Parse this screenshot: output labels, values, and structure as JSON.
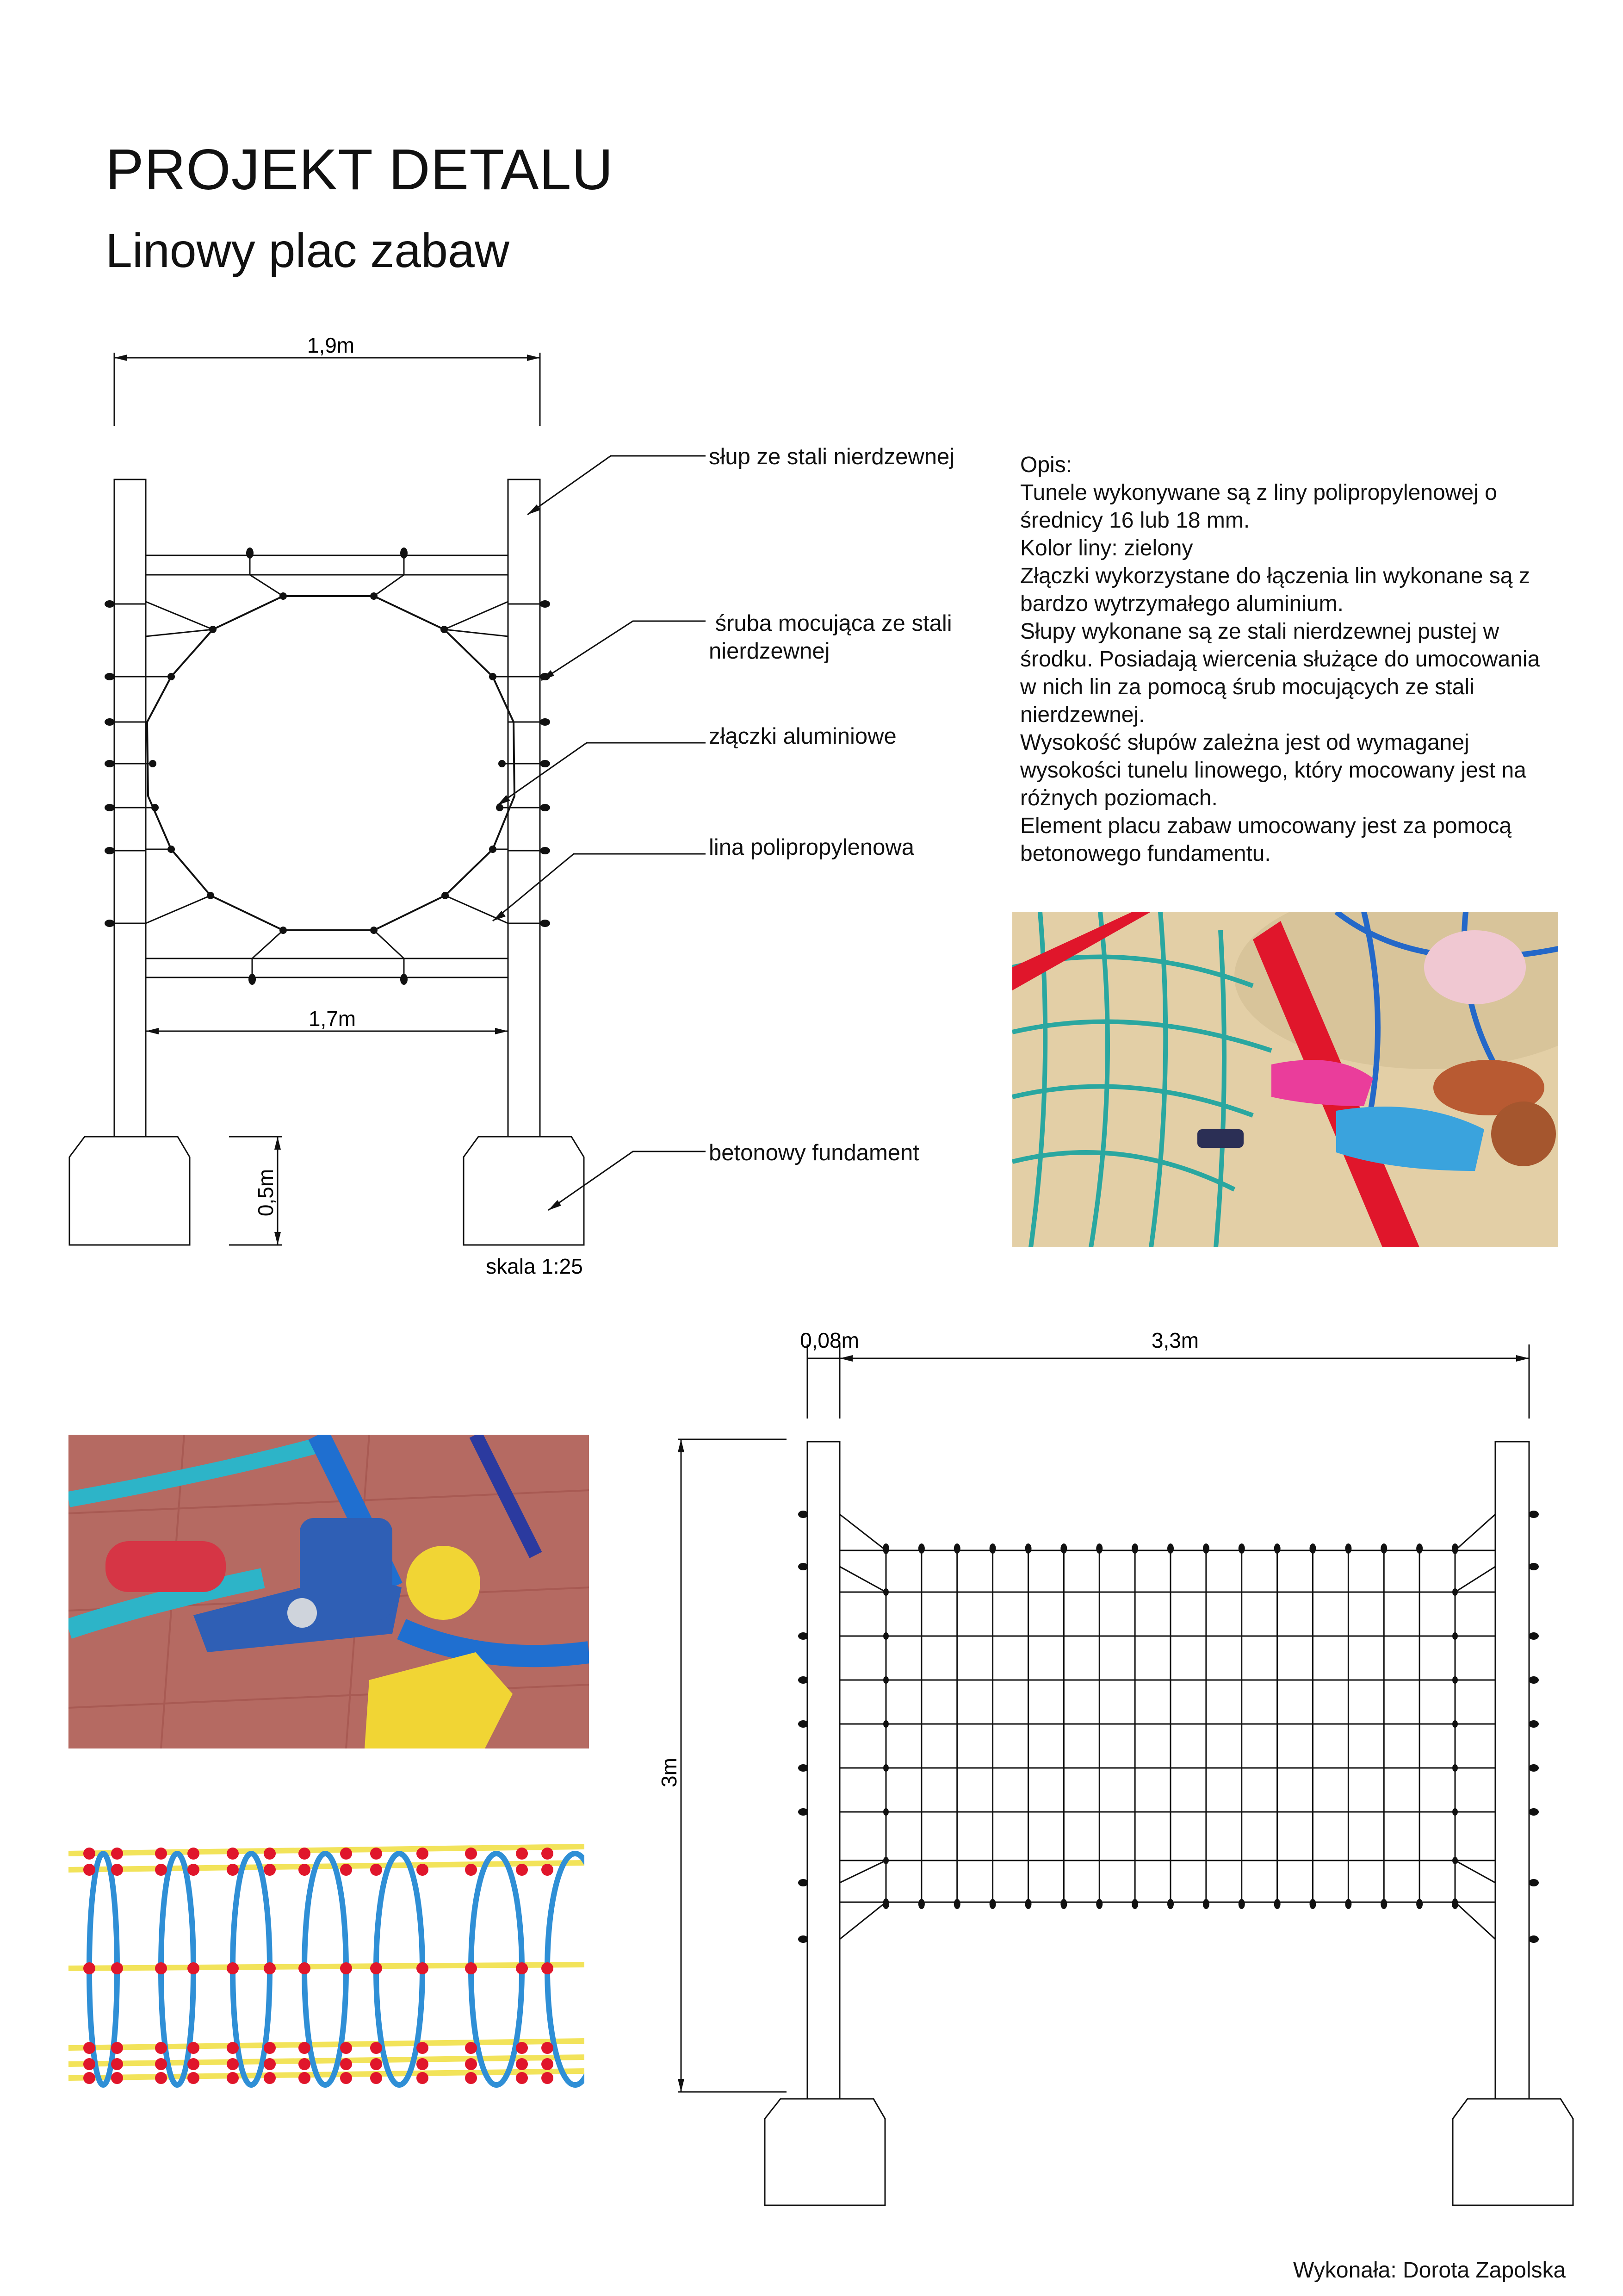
{
  "header": {
    "title": "PROJEKT DETALU",
    "subtitle": "Linowy plac zabaw"
  },
  "front_view": {
    "dim_top": "1,9m",
    "dim_inner": "1,7m",
    "dim_foundation": "0,5m",
    "scale": "skala 1:25"
  },
  "callouts": {
    "post": "słup ze stali nierdzewnej",
    "bolt": " śruba mocująca ze stali\nnierdzewnej",
    "connectors": "złączki aluminiowe",
    "rope": "lina polipropylenowa",
    "foundation": "betonowy fundament"
  },
  "description": {
    "heading": "Opis:",
    "lines": [
      "Tunele wykonywane są z liny polipropylenowej o",
      "średnicy 16 lub 18 mm.",
      "Kolor liny: zielony",
      "Złączki wykorzystane do łączenia lin wykonane są z",
      "bardzo wytrzymałego aluminium.",
      "Słupy wykonane są ze stali nierdzewnej pustej w",
      "środku. Posiadają wiercenia służące do umocowania",
      "w nich lin za pomocą śrub mocujących ze stali",
      "nierdzewnej.",
      "Wysokość słupów zależna jest od wymaganej",
      "wysokości tunelu linowego, który mocowany jest na",
      "różnych poziomach.",
      "Element placu zabaw umocowany jest za pomocą",
      "betonowego fundamentu."
    ]
  },
  "side_view": {
    "dim_post": "0,08m",
    "dim_length": "3,3m",
    "dim_height": "3m"
  },
  "photos": {
    "kids_photo": "children-climbing-rope-tunnel",
    "connector_photo": "blue-red-yellow-rope-connectors",
    "tunnel_photo": "blue-rope-tunnel-red-yellow-frame"
  },
  "colors": {
    "line": "#111111",
    "rope_blue": "#2f8fd6",
    "rope_teal": "#2aa7a0",
    "frame_red": "#e0162b",
    "connector_yellow": "#f2d21b"
  },
  "footer": {
    "author": "Wykonała: Dorota Zapolska"
  }
}
